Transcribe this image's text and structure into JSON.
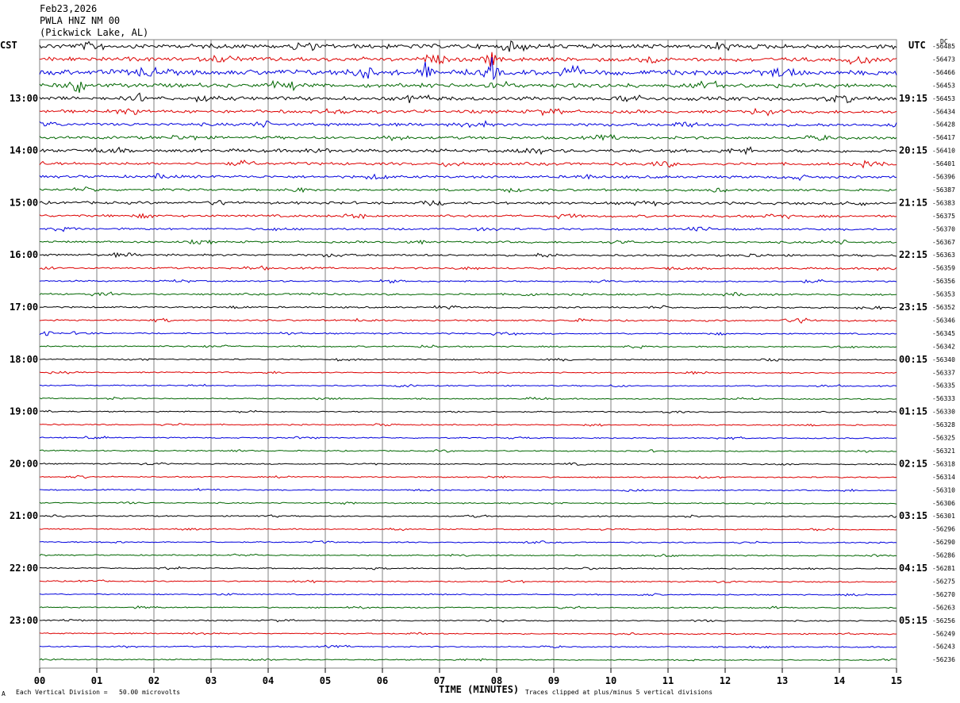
{
  "header": {
    "date": "Feb23,2026",
    "station": "PWLA HNZ NM 00",
    "location": "(Pickwick Lake, AL)"
  },
  "left_tz": "CST",
  "right_tz": "UTC",
  "dc_label": "DC",
  "footer": {
    "scale": "Each Vertical Division =   50.00 microvolts",
    "clip": "Traces clipped at plus/minus 5 vertical divisions",
    "mark": "A"
  },
  "colors": {
    "trace": [
      "#000000",
      "#dd0000",
      "#0000dd",
      "#006600"
    ],
    "grid": "#808080"
  },
  "chart_data": {
    "type": "line",
    "title": "",
    "xlabel": "TIME (MINUTES)",
    "ylabel": "",
    "xlim": [
      0,
      15
    ],
    "x_ticks": [
      "00",
      "01",
      "02",
      "03",
      "04",
      "05",
      "06",
      "07",
      "08",
      "09",
      "10",
      "11",
      "12",
      "13",
      "14",
      "15"
    ],
    "left_hour_labels": [
      "13:00",
      "14:00",
      "15:00",
      "16:00",
      "17:00",
      "18:00",
      "19:00",
      "20:00",
      "21:00",
      "22:00",
      "23:00"
    ],
    "right_hour_labels": [
      "19:15",
      "20:15",
      "21:15",
      "22:15",
      "23:15",
      "00:15",
      "01:15",
      "02:15",
      "03:15",
      "04:15",
      "05:15"
    ],
    "traces_per_hour": 4,
    "first_hour_partial": 4,
    "dc_offsets": [
      "-56485",
      "-56473",
      "-56466",
      "-56453",
      "-56453",
      "-56434",
      "-56428",
      "-56417",
      "-56410",
      "-56401",
      "-56396",
      "-56387",
      "-56383",
      "-56375",
      "-56370",
      "-56367",
      "-56363",
      "-56359",
      "-56356",
      "-56353",
      "-56352",
      "-56346",
      "-56345",
      "-56342",
      "-56340",
      "-56337",
      "-56335",
      "-56333",
      "-56330",
      "-56328",
      "-56325",
      "-56321",
      "-56318",
      "-56314",
      "-56310",
      "-56306",
      "-56301",
      "-56296",
      "-56290",
      "-56286",
      "-56281",
      "-56275",
      "-56270",
      "-56263",
      "-56256",
      "-56249",
      "-56243",
      "-56236"
    ],
    "activity": [
      2.2,
      2.0,
      2.6,
      2.0,
      1.9,
      1.6,
      1.5,
      1.4,
      1.6,
      1.4,
      1.3,
      1.1,
      1.3,
      1.2,
      1.0,
      1.0,
      1.0,
      0.9,
      0.8,
      0.9,
      0.8,
      0.8,
      0.7,
      0.7,
      0.6,
      0.6,
      0.6,
      0.6,
      0.6,
      0.6,
      0.6,
      0.6,
      0.6,
      0.6,
      0.6,
      0.6,
      0.6,
      0.6,
      0.6,
      0.6,
      0.6,
      0.6,
      0.6,
      0.6,
      0.6,
      0.6,
      0.6,
      0.6
    ],
    "events": [
      {
        "trace": 2,
        "minute": 7.9,
        "amplitude": 22
      },
      {
        "trace": 2,
        "minute": 6.75,
        "amplitude": 12
      },
      {
        "trace": 1,
        "minute": 7.9,
        "amplitude": 14
      },
      {
        "trace": 3,
        "minute": 0.7,
        "amplitude": 9
      },
      {
        "trace": 4,
        "minute": 1.75,
        "amplitude": 8
      },
      {
        "trace": 21,
        "minute": 13.4,
        "amplitude": 8
      },
      {
        "trace": 22,
        "minute": 0.1,
        "amplitude": 6
      }
    ],
    "grid": true,
    "clip_divisions": 5,
    "scale_microvolts_per_division": 50.0
  }
}
